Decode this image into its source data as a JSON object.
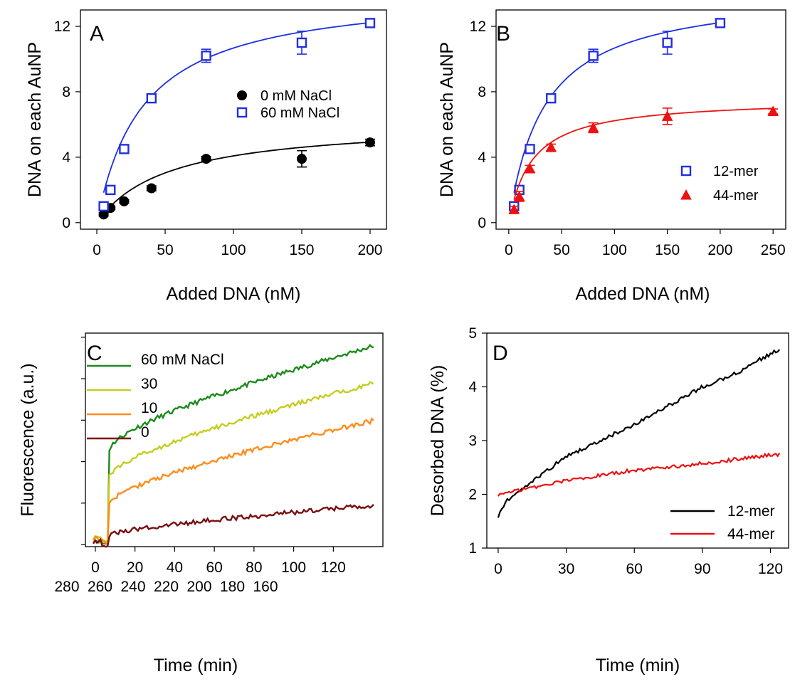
{
  "chart_data": [
    {
      "panel": "A",
      "type": "scatter",
      "xlabel": "Added DNA (nM)",
      "ylabel": "DNA on each AuNP",
      "xlim": [
        0,
        200
      ],
      "ylim": [
        0,
        13
      ],
      "xticks": [
        "0",
        "50",
        "100",
        "150",
        "200"
      ],
      "yticks": [
        "0",
        "4",
        "8",
        "12"
      ],
      "legend_position": "center-right",
      "series": [
        {
          "name": "0 mM NaCl",
          "color": "#000000",
          "marker": "filled-circle",
          "x": [
            5,
            10,
            20,
            40,
            80,
            150,
            200
          ],
          "y": [
            0.5,
            0.9,
            1.3,
            2.1,
            3.9,
            3.9,
            4.9
          ],
          "err": [
            0.1,
            0.1,
            0.1,
            0.15,
            0.15,
            0.5,
            0.2
          ],
          "fit": {
            "vmax": 6.2,
            "k": 52
          }
        },
        {
          "name": "60 mM NaCl",
          "color": "#1f2fe0",
          "marker": "open-square",
          "x": [
            5,
            10,
            20,
            40,
            80,
            150,
            200
          ],
          "y": [
            1.0,
            2.0,
            4.5,
            7.6,
            10.2,
            11.0,
            12.2
          ],
          "err": [
            0.1,
            0.15,
            0.2,
            0.25,
            0.4,
            0.7,
            0.2
          ],
          "fit": {
            "vmax": 14.3,
            "k": 34
          }
        }
      ]
    },
    {
      "panel": "B",
      "type": "scatter",
      "xlabel": "Added DNA (nM)",
      "ylabel": "DNA on each AuNP",
      "xlim": [
        0,
        250
      ],
      "ylim": [
        0,
        13
      ],
      "xticks": [
        "0",
        "50",
        "100",
        "150",
        "200",
        "250"
      ],
      "yticks": [
        "0",
        "4",
        "8",
        "12"
      ],
      "legend_position": "bottom-right",
      "series": [
        {
          "name": "12-mer",
          "color": "#1f2fe0",
          "marker": "open-square",
          "x": [
            5,
            10,
            20,
            40,
            80,
            150,
            200
          ],
          "y": [
            1.0,
            2.0,
            4.5,
            7.6,
            10.2,
            11.0,
            12.2
          ],
          "err": [
            0.1,
            0.15,
            0.2,
            0.25,
            0.4,
            0.7,
            0.2
          ],
          "fit": {
            "vmax": 14.3,
            "k": 34
          }
        },
        {
          "name": "44-mer",
          "color": "#ee1111",
          "marker": "filled-triangle",
          "x": [
            5,
            10,
            20,
            40,
            80,
            150,
            250
          ],
          "y": [
            0.8,
            1.6,
            3.3,
            4.6,
            5.8,
            6.5,
            6.8
          ],
          "err": [
            0.2,
            0.3,
            0.2,
            0.2,
            0.3,
            0.5,
            0.15
          ],
          "fit": {
            "vmax": 7.6,
            "k": 22
          }
        }
      ]
    },
    {
      "panel": "C",
      "type": "line",
      "xlabel": "Time (min)",
      "ylabel": "Fluorescence (a.u.)",
      "xlim": [
        -5,
        145
      ],
      "ylim": [
        0,
        1
      ],
      "xticks": [
        "0",
        "20",
        "40",
        "60",
        "80",
        "100",
        "120"
      ],
      "xticks_second_row": [
        "280",
        "260",
        "240",
        "220",
        "200",
        "180",
        "160"
      ],
      "legend_position": "top-left",
      "series": [
        {
          "name": "60 mM NaCl",
          "color": "#1c8a1c",
          "pre": 0.02,
          "jump": 0.45,
          "end": 0.96
        },
        {
          "name": "30",
          "color": "#c6cd1e",
          "pre": 0.035,
          "jump": 0.32,
          "end": 0.78
        },
        {
          "name": "10",
          "color": "#ff8c1a",
          "pre": 0.03,
          "jump": 0.19,
          "end": 0.6
        },
        {
          "name": "0",
          "color": "#7a0f0f",
          "pre": 0.015,
          "jump": 0.04,
          "end": 0.19
        }
      ]
    },
    {
      "panel": "D",
      "type": "line",
      "xlabel": "Time (min)",
      "ylabel": "Desorbed DNA (%)",
      "xlim": [
        -5,
        128
      ],
      "ylim": [
        1,
        5
      ],
      "xticks": [
        "0",
        "30",
        "60",
        "90",
        "120"
      ],
      "yticks": [
        "1",
        "2",
        "3",
        "4",
        "5"
      ],
      "legend_position": "bottom-right",
      "series": [
        {
          "name": "12-mer",
          "color": "#000000",
          "x": [
            0,
            3,
            10,
            20,
            30,
            45,
            60,
            75,
            90,
            105,
            115,
            124
          ],
          "y": [
            1.6,
            1.85,
            2.1,
            2.4,
            2.7,
            3.0,
            3.3,
            3.65,
            4.0,
            4.25,
            4.5,
            4.7
          ]
        },
        {
          "name": "44-mer",
          "color": "#ee1111",
          "x": [
            0,
            10,
            20,
            30,
            45,
            60,
            75,
            90,
            105,
            124
          ],
          "y": [
            2.0,
            2.08,
            2.17,
            2.25,
            2.35,
            2.45,
            2.5,
            2.58,
            2.65,
            2.75
          ]
        }
      ]
    }
  ]
}
